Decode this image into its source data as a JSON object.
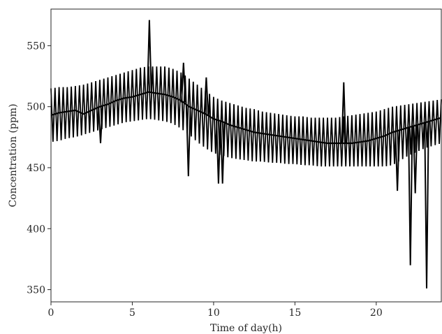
{
  "chart_data": {
    "type": "line",
    "xlabel": "Time of day(h)",
    "ylabel": "Concentration (ppm)",
    "xlim": [
      0,
      24
    ],
    "ylim": [
      340,
      580
    ],
    "xticks": [
      0,
      5,
      10,
      15,
      20
    ],
    "yticks": [
      350,
      400,
      450,
      500,
      550
    ],
    "grid": false,
    "legend": "none",
    "line_color": "#000000",
    "series": [
      {
        "x": [
          0.0,
          0.5,
          1.0,
          1.5,
          2.0,
          2.5,
          3.0,
          3.5,
          4.0,
          4.5,
          5.0,
          5.5,
          6.0,
          6.5,
          7.0,
          7.5,
          8.0,
          8.5,
          9.0,
          9.5,
          10.0,
          10.5,
          11.0,
          11.5,
          12.0,
          12.5,
          13.0,
          13.5,
          14.0,
          14.5,
          15.0,
          15.5,
          16.0,
          16.5,
          17.0,
          17.5,
          18.0,
          18.5,
          19.0,
          19.5,
          20.0,
          20.5,
          21.0,
          21.5,
          22.0,
          22.5,
          23.0,
          23.5,
          24.0
        ],
        "y": [
          493,
          495,
          496,
          497,
          494,
          497,
          500,
          502,
          505,
          507,
          508,
          510,
          512,
          511,
          510,
          508,
          505,
          500,
          497,
          494,
          490,
          488,
          485,
          483,
          481,
          479,
          478,
          477,
          476,
          475,
          474,
          473,
          472,
          471,
          470,
          470,
          470,
          470,
          471,
          472,
          474,
          476,
          479,
          481,
          483,
          485,
          487,
          489,
          491
        ],
        "upper": [
          515,
          516,
          516,
          517,
          518,
          520,
          522,
          524,
          526,
          528,
          530,
          532,
          533,
          533,
          533,
          531,
          528,
          523,
          518,
          513,
          508,
          505,
          503,
          501,
          499,
          498,
          496,
          495,
          494,
          493,
          492,
          492,
          491,
          491,
          491,
          491,
          492,
          493,
          494,
          495,
          496,
          498,
          500,
          501,
          502,
          503,
          504,
          505,
          506
        ],
        "lower": [
          471,
          472,
          474,
          475,
          477,
          479,
          481,
          483,
          485,
          487,
          488,
          489,
          490,
          489,
          488,
          486,
          482,
          477,
          471,
          466,
          462,
          460,
          458,
          457,
          456,
          455,
          455,
          454,
          454,
          453,
          453,
          452,
          452,
          451,
          451,
          451,
          451,
          451,
          451,
          451,
          451,
          451,
          452,
          456,
          460,
          463,
          466,
          468,
          470
        ]
      }
    ],
    "spikes": [
      {
        "x": 3.05,
        "y": 470
      },
      {
        "x": 6.05,
        "y": 571
      },
      {
        "x": 8.15,
        "y": 536
      },
      {
        "x": 8.45,
        "y": 443
      },
      {
        "x": 9.55,
        "y": 524
      },
      {
        "x": 10.3,
        "y": 437
      },
      {
        "x": 10.55,
        "y": 437
      },
      {
        "x": 18.0,
        "y": 520
      },
      {
        "x": 21.3,
        "y": 431
      },
      {
        "x": 22.1,
        "y": 370
      },
      {
        "x": 22.4,
        "y": 429
      },
      {
        "x": 23.1,
        "y": 351
      }
    ]
  }
}
